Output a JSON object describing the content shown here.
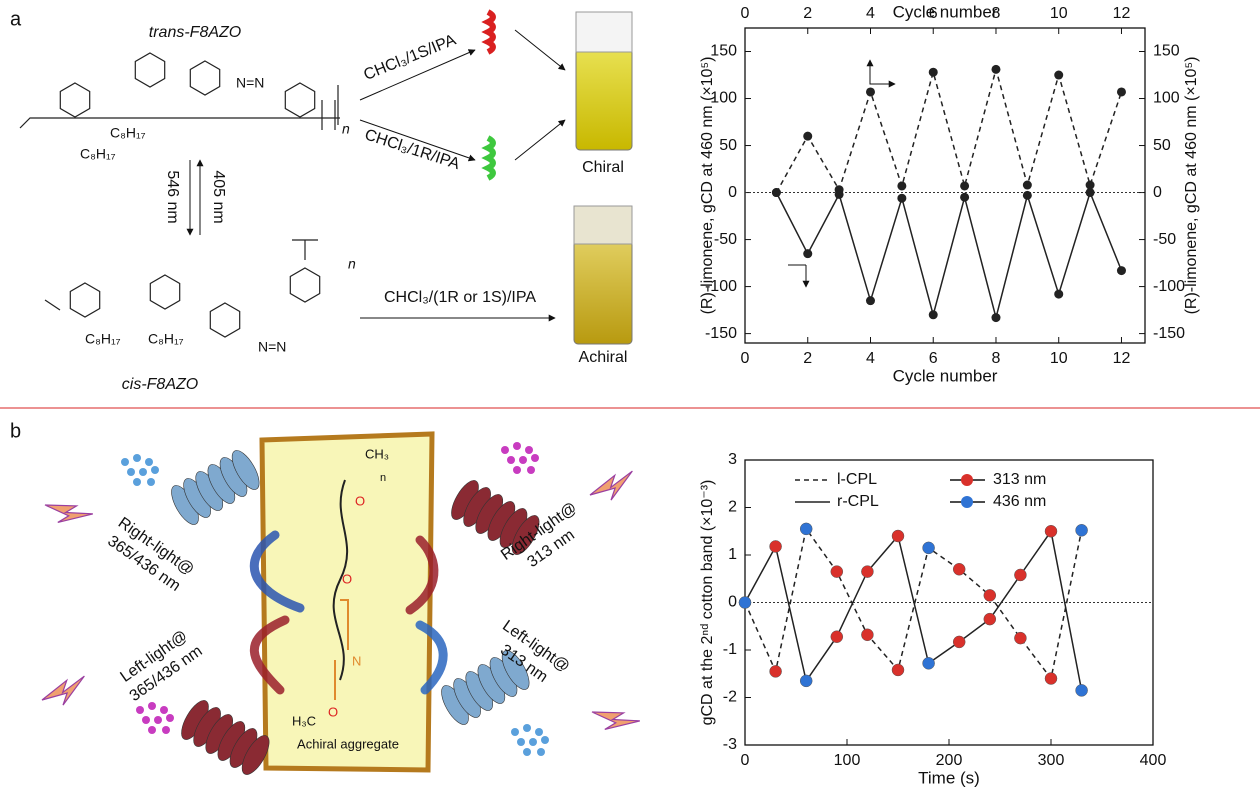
{
  "panel_labels": [
    "a",
    "b"
  ],
  "scheme_a": {
    "trans_label": "trans-F8AZO",
    "cis_label": "cis-F8AZO",
    "alkyl": "C₈H₁₇",
    "repeat": "n",
    "route_1s": "CHCl₃/1S/IPA",
    "route_1r": "CHCl₃/1R/IPA",
    "route_any": "CHCl₃/(1R or 1S)/IPA",
    "chiral": "Chiral",
    "achiral": "Achiral",
    "forward_wavelength": "546 nm",
    "backward_wavelength": "405 nm",
    "azo": "N=N"
  },
  "scheme_b": {
    "right_uv": [
      "Right-light@",
      "365/436 nm"
    ],
    "left_uv": [
      "Left-light@",
      "365/436 nm"
    ],
    "right_313": [
      "Right-light@",
      "313 nm"
    ],
    "left_313": [
      "Left-light@",
      "313 nm"
    ],
    "aggregate": "Achiral aggregate",
    "methyl_top": "CH₃",
    "methyl_bottom": "H₃C",
    "oxygen": "O",
    "nitrogen": "N",
    "repeat": "n"
  },
  "chart_data": [
    {
      "type": "line",
      "xlabel": "Cycle number",
      "x2label": "Cycle number",
      "ylabel": "(R)-limonene, gCD at 460 nm (×10⁵)",
      "y2label": "(R)-limonene, gCD at 460 nm (×10⁵)",
      "x": [
        1,
        2,
        3,
        4,
        5,
        6,
        7,
        8,
        9,
        10,
        11,
        12
      ],
      "xlim": [
        0,
        12.75
      ],
      "xticks": [
        0,
        2,
        4,
        6,
        8,
        10,
        12
      ],
      "ylim": [
        -160,
        175
      ],
      "yticks": [
        -150,
        -100,
        -50,
        0,
        50,
        100,
        150
      ],
      "y2lim": [
        -160,
        175
      ],
      "y2ticks": [
        -150,
        -100,
        -50,
        0,
        50,
        100,
        150
      ],
      "zero_line": true,
      "series": [
        {
          "axis": "y2",
          "style": "dashed",
          "color": "#222222",
          "values": [
            0,
            60,
            3,
            107,
            7,
            128,
            7,
            131,
            8,
            125,
            8,
            107
          ]
        },
        {
          "style": "solid",
          "color": "#222222",
          "values": [
            0,
            -65,
            -2,
            -115,
            -6,
            -130,
            -5,
            -133,
            -3,
            -108,
            0,
            -83
          ]
        }
      ]
    },
    {
      "type": "line",
      "xlabel": "Time (s)",
      "ylabel": "gCD at the 2ⁿᵈ cotton band (×10⁻³)",
      "x": [
        0,
        30,
        60,
        90,
        120,
        150,
        180,
        210,
        240,
        270,
        300,
        330
      ],
      "xlim": [
        0,
        400
      ],
      "xticks": [
        0,
        100,
        200,
        300,
        400
      ],
      "ylim": [
        -3,
        3
      ],
      "yticks": [
        -3,
        -2,
        -1,
        0,
        1,
        2,
        3
      ],
      "zero_line": true,
      "marker_legend": [
        {
          "name": "313 nm",
          "color": "#d9312b"
        },
        {
          "name": "436 nm",
          "color": "#2f73d4"
        }
      ],
      "series": [
        {
          "name": "l-CPL",
          "style": "dashed",
          "color": "#222222",
          "values": [
            0,
            -1.45,
            1.55,
            0.65,
            -0.68,
            -1.42,
            1.15,
            0.7,
            0.15,
            -0.75,
            -1.6,
            1.52
          ],
          "point_colors": [
            "#2f73d4",
            "#d9312b",
            "#2f73d4",
            "#d9312b",
            "#d9312b",
            "#d9312b",
            "#2f73d4",
            "#d9312b",
            "#d9312b",
            "#d9312b",
            "#d9312b",
            "#2f73d4"
          ]
        },
        {
          "name": "r-CPL",
          "style": "solid",
          "color": "#222222",
          "values": [
            0,
            1.18,
            -1.65,
            -0.72,
            0.65,
            1.4,
            -1.28,
            -0.83,
            -0.35,
            0.58,
            1.5,
            -1.85
          ],
          "point_colors": [
            "#2f73d4",
            "#d9312b",
            "#2f73d4",
            "#d9312b",
            "#d9312b",
            "#d9312b",
            "#2f73d4",
            "#d9312b",
            "#d9312b",
            "#d9312b",
            "#d9312b",
            "#2f73d4"
          ]
        }
      ]
    }
  ]
}
